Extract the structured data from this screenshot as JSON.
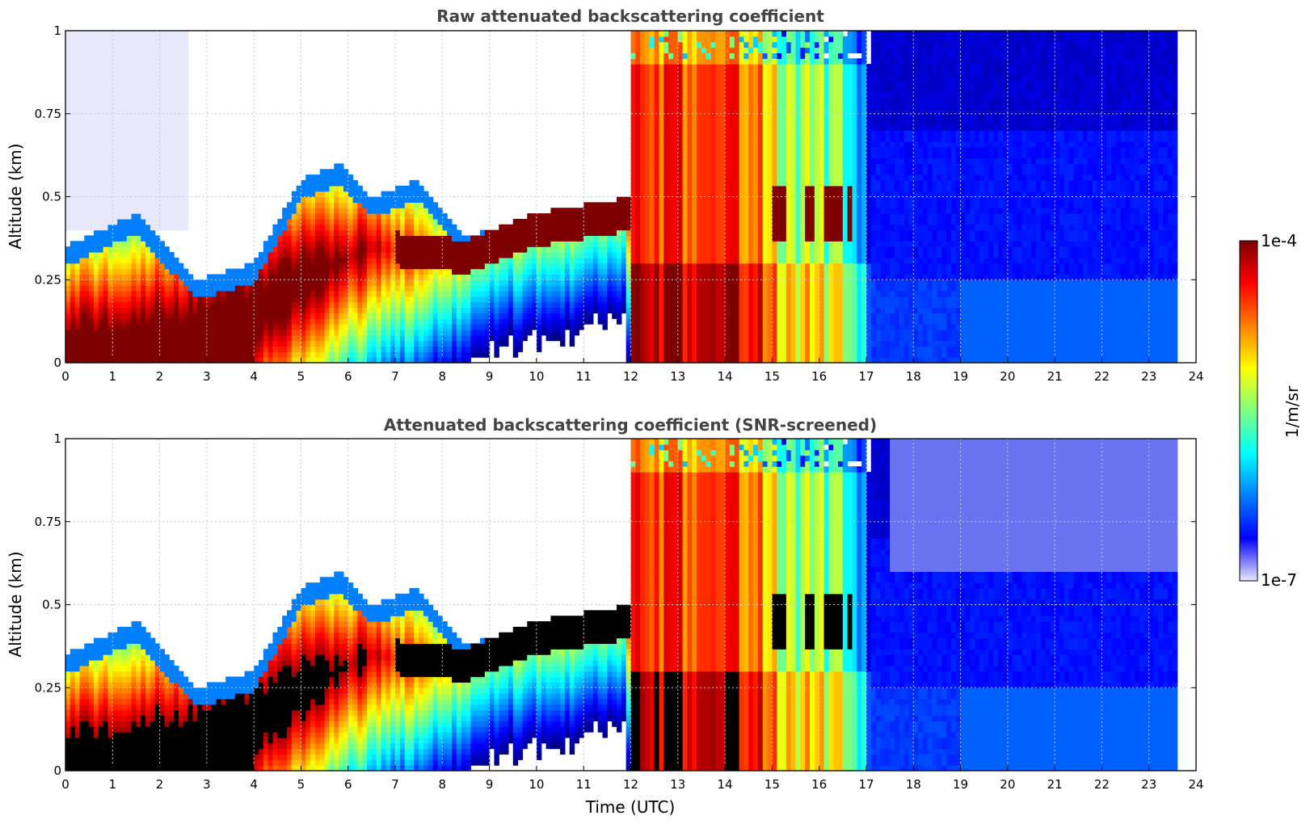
{
  "colors": {
    "jet": [
      "#00007f",
      "#0000ff",
      "#007fff",
      "#00ffff",
      "#7fff7f",
      "#ffff00",
      "#ff7f00",
      "#ff0000",
      "#7f0000"
    ],
    "lowest": "#e8e8fb",
    "saturated_screened": "#000000",
    "grid": "#c8c8c8"
  },
  "chart_data": [
    {
      "type": "heatmap",
      "title": "Raw attenuated backscattering coefficient",
      "xlabel": "",
      "ylabel": "Altitude (km)",
      "xlim": [
        0,
        24
      ],
      "ylim": [
        0,
        1
      ],
      "xticks": [
        "0",
        "1",
        "2",
        "3",
        "4",
        "5",
        "6",
        "7",
        "8",
        "9",
        "10",
        "11",
        "12",
        "13",
        "14",
        "15",
        "16",
        "17",
        "18",
        "19",
        "20",
        "21",
        "22",
        "23",
        "24"
      ],
      "yticks": [
        "0",
        "0.25",
        "0.5",
        "0.75",
        "1"
      ],
      "grid": true,
      "screened": false
    },
    {
      "type": "heatmap",
      "title": "Attenuated backscattering coefficient (SNR-screened)",
      "xlabel": "Time (UTC)",
      "ylabel": "Altitude (km)",
      "xlim": [
        0,
        24
      ],
      "ylim": [
        0,
        1
      ],
      "xticks": [
        "0",
        "1",
        "2",
        "3",
        "4",
        "5",
        "6",
        "7",
        "8",
        "9",
        "10",
        "11",
        "12",
        "13",
        "14",
        "15",
        "16",
        "17",
        "18",
        "19",
        "20",
        "21",
        "22",
        "23",
        "24"
      ],
      "yticks": [
        "0",
        "0.25",
        "0.5",
        "0.75",
        "1"
      ],
      "grid": true,
      "screened": true
    }
  ],
  "colorbar": {
    "label": "1/m/sr",
    "max_label": "1e-4",
    "min_label": "1e-7",
    "scale": "log"
  }
}
